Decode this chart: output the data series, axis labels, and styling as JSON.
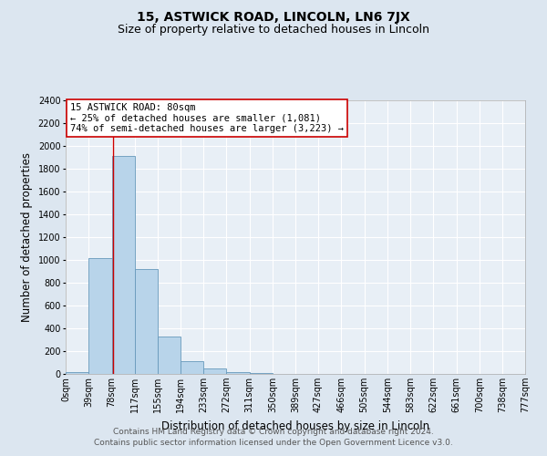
{
  "title": "15, ASTWICK ROAD, LINCOLN, LN6 7JX",
  "subtitle": "Size of property relative to detached houses in Lincoln",
  "xlabel": "Distribution of detached houses by size in Lincoln",
  "ylabel": "Number of detached properties",
  "bin_edges": [
    0,
    39,
    78,
    117,
    155,
    194,
    233,
    272,
    311,
    350,
    389,
    427,
    466,
    505,
    544,
    583,
    622,
    661,
    700,
    738,
    777
  ],
  "bin_labels": [
    "0sqm",
    "39sqm",
    "78sqm",
    "117sqm",
    "155sqm",
    "194sqm",
    "233sqm",
    "272sqm",
    "311sqm",
    "350sqm",
    "389sqm",
    "427sqm",
    "466sqm",
    "505sqm",
    "544sqm",
    "583sqm",
    "622sqm",
    "661sqm",
    "700sqm",
    "738sqm",
    "777sqm"
  ],
  "bar_heights": [
    20,
    1020,
    1910,
    920,
    325,
    110,
    50,
    20,
    10,
    0,
    0,
    0,
    0,
    0,
    0,
    0,
    0,
    0,
    0,
    0
  ],
  "bar_color": "#b8d4ea",
  "bar_edge_color": "#6699bb",
  "vline_x": 80,
  "vline_color": "#cc0000",
  "ylim": [
    0,
    2400
  ],
  "yticks": [
    0,
    200,
    400,
    600,
    800,
    1000,
    1200,
    1400,
    1600,
    1800,
    2000,
    2200,
    2400
  ],
  "annotation_title": "15 ASTWICK ROAD: 80sqm",
  "annotation_line1": "← 25% of detached houses are smaller (1,081)",
  "annotation_line2": "74% of semi-detached houses are larger (3,223) →",
  "annotation_box_color": "#ffffff",
  "annotation_box_edge": "#cc0000",
  "footer_line1": "Contains HM Land Registry data © Crown copyright and database right 2024.",
  "footer_line2": "Contains public sector information licensed under the Open Government Licence v3.0.",
  "background_color": "#dce6f0",
  "plot_bg_color": "#e8eff6",
  "title_fontsize": 10,
  "subtitle_fontsize": 9,
  "axis_label_fontsize": 8.5,
  "tick_label_fontsize": 7,
  "footer_fontsize": 6.5,
  "annotation_fontsize": 7.5
}
